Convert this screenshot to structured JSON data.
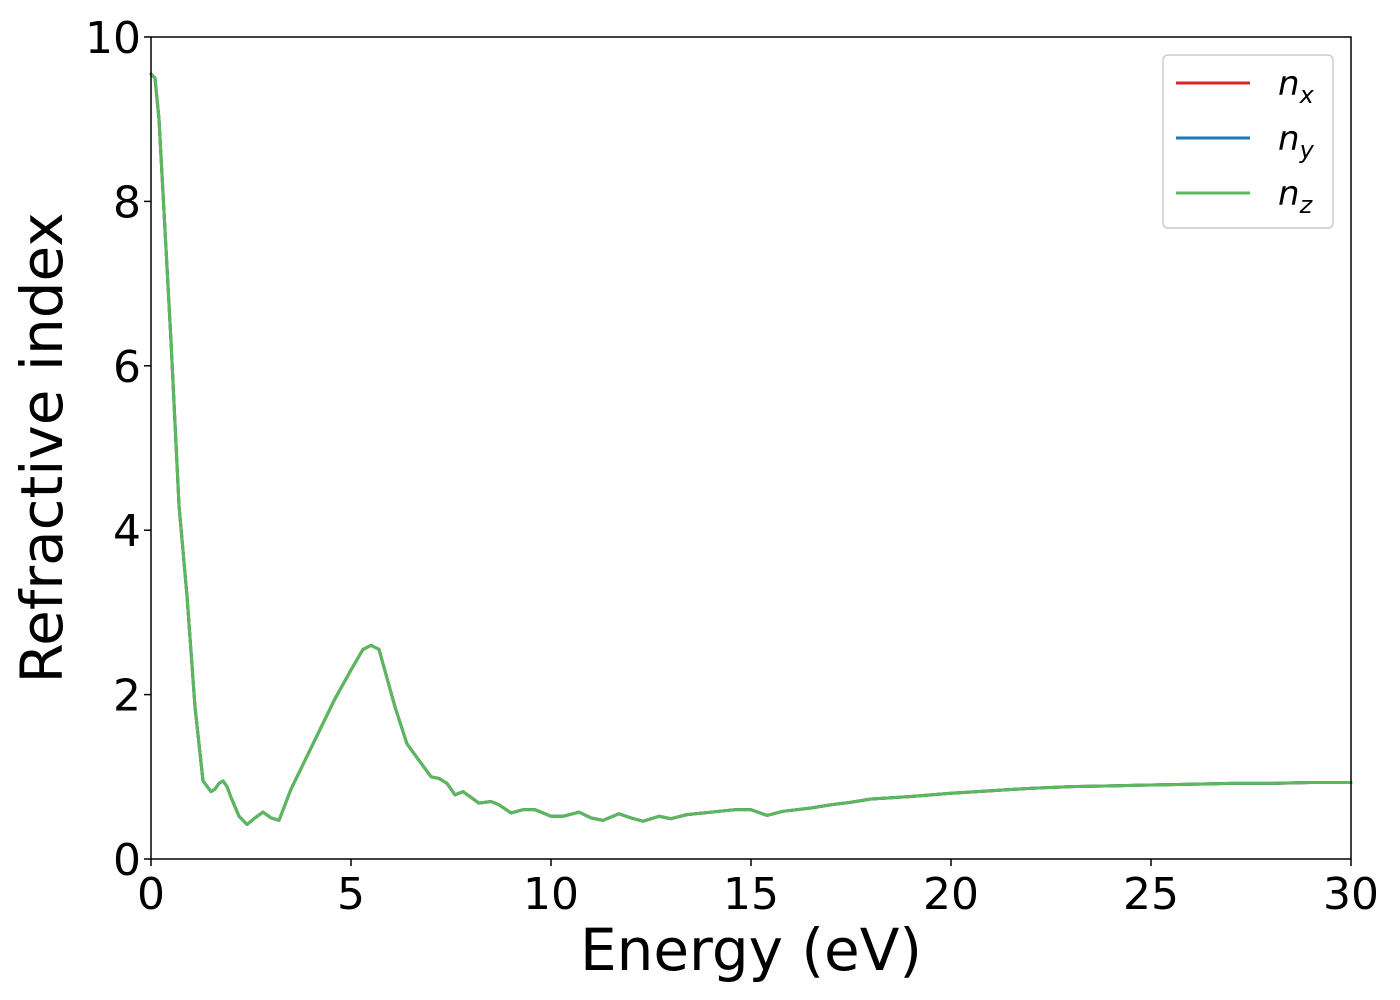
{
  "chart_data": {
    "type": "line",
    "xlabel": "Energy (eV)",
    "ylabel": "Refractive index",
    "xlim": [
      0,
      30
    ],
    "ylim": [
      0,
      10
    ],
    "xticks": [
      "0",
      "5",
      "10",
      "15",
      "20",
      "25",
      "30"
    ],
    "yticks": [
      "0",
      "2",
      "4",
      "6",
      "8",
      "10"
    ],
    "grid": false,
    "legend": {
      "position": "top-right"
    },
    "series": [
      {
        "name": "n",
        "subscript": "x",
        "color": "#d62728",
        "x": [
          0.0,
          0.1,
          0.2,
          0.3,
          0.5,
          0.7,
          0.9,
          1.1,
          1.3,
          1.5,
          1.6,
          1.7,
          1.8,
          1.9,
          2.0,
          2.2,
          2.4,
          2.6,
          2.8,
          3.0,
          3.2,
          3.5,
          3.8,
          4.2,
          4.6,
          5.0,
          5.3,
          5.5,
          5.7,
          5.9,
          6.1,
          6.4,
          6.7,
          7.0,
          7.2,
          7.4,
          7.6,
          7.8,
          8.0,
          8.2,
          8.5,
          8.7,
          9.0,
          9.3,
          9.6,
          10.0,
          10.3,
          10.7,
          11.0,
          11.3,
          11.7,
          12.0,
          12.3,
          12.7,
          13.0,
          13.4,
          13.8,
          14.2,
          14.6,
          15.0,
          15.4,
          15.8,
          16.5,
          17.0,
          17.5,
          18.0,
          19.0,
          20.0,
          21.0,
          22.0,
          23.0,
          24.0,
          25.0,
          26.0,
          27.0,
          28.0,
          29.0,
          30.0
        ],
        "y": [
          9.55,
          9.5,
          9.0,
          8.1,
          6.3,
          4.3,
          3.2,
          1.85,
          0.95,
          0.82,
          0.85,
          0.92,
          0.95,
          0.88,
          0.75,
          0.52,
          0.42,
          0.5,
          0.57,
          0.5,
          0.47,
          0.85,
          1.15,
          1.55,
          1.95,
          2.3,
          2.55,
          2.6,
          2.55,
          2.2,
          1.85,
          1.4,
          1.2,
          1.0,
          0.98,
          0.92,
          0.78,
          0.82,
          0.75,
          0.68,
          0.7,
          0.66,
          0.56,
          0.6,
          0.6,
          0.52,
          0.52,
          0.57,
          0.5,
          0.47,
          0.55,
          0.5,
          0.46,
          0.52,
          0.49,
          0.54,
          0.56,
          0.58,
          0.6,
          0.6,
          0.53,
          0.58,
          0.62,
          0.66,
          0.69,
          0.73,
          0.76,
          0.8,
          0.83,
          0.86,
          0.88,
          0.89,
          0.9,
          0.91,
          0.92,
          0.92,
          0.93,
          0.93
        ]
      },
      {
        "name": "n",
        "subscript": "y",
        "color": "#1f77b4",
        "x": [
          0.0,
          0.1,
          0.2,
          0.3,
          0.5,
          0.7,
          0.9,
          1.1,
          1.3,
          1.5,
          1.6,
          1.7,
          1.8,
          1.9,
          2.0,
          2.2,
          2.4,
          2.6,
          2.8,
          3.0,
          3.2,
          3.5,
          3.8,
          4.2,
          4.6,
          5.0,
          5.3,
          5.5,
          5.7,
          5.9,
          6.1,
          6.4,
          6.7,
          7.0,
          7.2,
          7.4,
          7.6,
          7.8,
          8.0,
          8.2,
          8.5,
          8.7,
          9.0,
          9.3,
          9.6,
          10.0,
          10.3,
          10.7,
          11.0,
          11.3,
          11.7,
          12.0,
          12.3,
          12.7,
          13.0,
          13.4,
          13.8,
          14.2,
          14.6,
          15.0,
          15.4,
          15.8,
          16.5,
          17.0,
          17.5,
          18.0,
          19.0,
          20.0,
          21.0,
          22.0,
          23.0,
          24.0,
          25.0,
          26.0,
          27.0,
          28.0,
          29.0,
          30.0
        ],
        "y": [
          9.55,
          9.5,
          9.0,
          8.1,
          6.3,
          4.3,
          3.2,
          1.85,
          0.95,
          0.82,
          0.85,
          0.92,
          0.95,
          0.88,
          0.75,
          0.52,
          0.42,
          0.5,
          0.57,
          0.5,
          0.47,
          0.85,
          1.15,
          1.55,
          1.95,
          2.3,
          2.55,
          2.6,
          2.55,
          2.2,
          1.85,
          1.4,
          1.2,
          1.0,
          0.98,
          0.92,
          0.78,
          0.82,
          0.75,
          0.68,
          0.7,
          0.66,
          0.56,
          0.6,
          0.6,
          0.52,
          0.52,
          0.57,
          0.5,
          0.47,
          0.55,
          0.5,
          0.46,
          0.52,
          0.49,
          0.54,
          0.56,
          0.58,
          0.6,
          0.6,
          0.53,
          0.58,
          0.62,
          0.66,
          0.69,
          0.73,
          0.76,
          0.8,
          0.83,
          0.86,
          0.88,
          0.89,
          0.9,
          0.91,
          0.92,
          0.92,
          0.93,
          0.93
        ]
      },
      {
        "name": "n",
        "subscript": "z",
        "color": "#5cb85c",
        "x": [
          0.0,
          0.1,
          0.2,
          0.3,
          0.5,
          0.7,
          0.9,
          1.1,
          1.3,
          1.5,
          1.6,
          1.7,
          1.8,
          1.9,
          2.0,
          2.2,
          2.4,
          2.6,
          2.8,
          3.0,
          3.2,
          3.5,
          3.8,
          4.2,
          4.6,
          5.0,
          5.3,
          5.5,
          5.7,
          5.9,
          6.1,
          6.4,
          6.7,
          7.0,
          7.2,
          7.4,
          7.6,
          7.8,
          8.0,
          8.2,
          8.5,
          8.7,
          9.0,
          9.3,
          9.6,
          10.0,
          10.3,
          10.7,
          11.0,
          11.3,
          11.7,
          12.0,
          12.3,
          12.7,
          13.0,
          13.4,
          13.8,
          14.2,
          14.6,
          15.0,
          15.4,
          15.8,
          16.5,
          17.0,
          17.5,
          18.0,
          19.0,
          20.0,
          21.0,
          22.0,
          23.0,
          24.0,
          25.0,
          26.0,
          27.0,
          28.0,
          29.0,
          30.0
        ],
        "y": [
          9.55,
          9.5,
          9.0,
          8.1,
          6.3,
          4.3,
          3.2,
          1.85,
          0.95,
          0.82,
          0.85,
          0.92,
          0.95,
          0.88,
          0.75,
          0.52,
          0.42,
          0.5,
          0.57,
          0.5,
          0.47,
          0.85,
          1.15,
          1.55,
          1.95,
          2.3,
          2.55,
          2.6,
          2.55,
          2.2,
          1.85,
          1.4,
          1.2,
          1.0,
          0.98,
          0.92,
          0.78,
          0.82,
          0.75,
          0.68,
          0.7,
          0.66,
          0.56,
          0.6,
          0.6,
          0.52,
          0.52,
          0.57,
          0.5,
          0.47,
          0.55,
          0.5,
          0.46,
          0.52,
          0.49,
          0.54,
          0.56,
          0.58,
          0.6,
          0.6,
          0.53,
          0.58,
          0.62,
          0.66,
          0.69,
          0.73,
          0.76,
          0.8,
          0.83,
          0.86,
          0.88,
          0.89,
          0.9,
          0.91,
          0.92,
          0.92,
          0.93,
          0.93
        ]
      }
    ]
  }
}
